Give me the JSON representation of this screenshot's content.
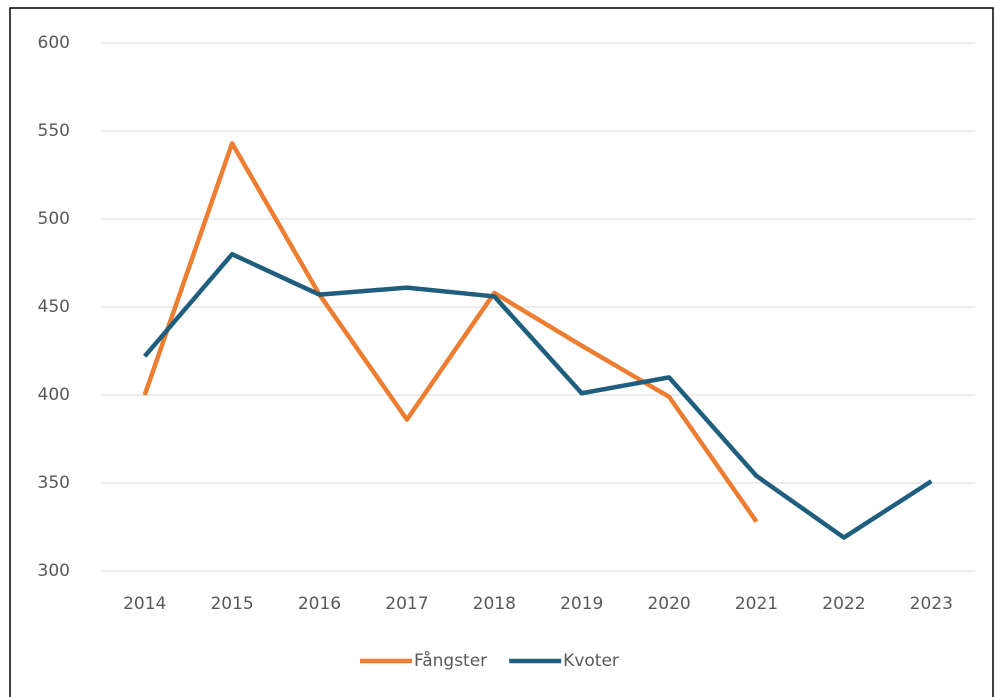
{
  "chart_data": {
    "type": "line",
    "categories": [
      "2014",
      "2015",
      "2016",
      "2017",
      "2018",
      "2019",
      "2020",
      "2021",
      "2022",
      "2023"
    ],
    "series": [
      {
        "name": "Fångster",
        "color": "#ed7d31",
        "values": [
          400,
          543,
          457,
          386,
          458,
          428,
          399,
          328,
          null,
          null
        ]
      },
      {
        "name": "Kvoter",
        "color": "#1f5f7d",
        "values": [
          422,
          480,
          457,
          461,
          456,
          401,
          410,
          354,
          319,
          351
        ]
      }
    ],
    "ylim": [
      300,
      600
    ],
    "yticks": [
      300,
      350,
      400,
      450,
      500,
      550,
      600
    ],
    "grid": true,
    "legend": "bottom"
  }
}
